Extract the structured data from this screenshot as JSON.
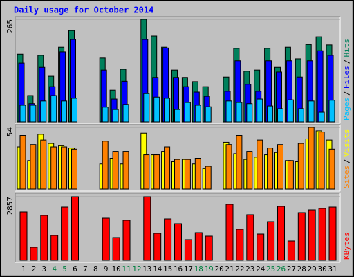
{
  "chart_data": {
    "type": "bar",
    "title": "Daily usage for October 2014",
    "categories": [
      "1",
      "2",
      "3",
      "4",
      "5",
      "6",
      "7",
      "8",
      "9",
      "10",
      "11",
      "12",
      "13",
      "14",
      "15",
      "16",
      "17",
      "18",
      "19",
      "20",
      "21",
      "22",
      "23",
      "24",
      "25",
      "26",
      "27",
      "28",
      "29",
      "30",
      "31"
    ],
    "category_color": "#000000",
    "highlight_indices": [
      3,
      4,
      10,
      11,
      17,
      18,
      24,
      25
    ],
    "highlight_color": "#008040",
    "legend_separator": "/",
    "panels": [
      {
        "ylim": [
          0,
          265
        ],
        "yticks": [
          265
        ],
        "series": [
          {
            "name": "Hits",
            "color": "#00805c",
            "values": [
              175,
              68,
              172,
              118,
              193,
              236,
              0,
              0,
              165,
              82,
              136,
              0,
              265,
              222,
              193,
              134,
              115,
              104,
              91,
              0,
              116,
              190,
              131,
              134,
              190,
              141,
              193,
              163,
              200,
              220,
              199
            ]
          },
          {
            "name": "Files",
            "color": "#0000ff",
            "values": [
              152,
              47,
              141,
              91,
              181,
              213,
              0,
              0,
              134,
              59,
              105,
              0,
              213,
              115,
              191,
              115,
              91,
              77,
              66,
              0,
              79,
              158,
              97,
              79,
              158,
              129,
              158,
              116,
              158,
              184,
              172
            ]
          },
          {
            "name": "Pages",
            "color": "#00c0ff",
            "values": [
              43,
              43,
              54,
              68,
              54,
              61,
              0,
              0,
              38,
              32,
              45,
              0,
              73,
              64,
              61,
              32,
              50,
              43,
              39,
              0,
              54,
              50,
              47,
              59,
              41,
              34,
              57,
              34,
              54,
              25,
              56
            ]
          }
        ]
      },
      {
        "ylim": [
          0,
          54
        ],
        "yticks": [
          54
        ],
        "series": [
          {
            "name": "Visits",
            "color": "#ffff00",
            "values": [
              37,
              25,
              48,
              40,
              38,
              36,
              0,
              0,
              22,
              27,
              22,
              0,
              49,
              30,
              33,
              24,
              26,
              22,
              18,
              0,
              41,
              31,
              26,
              28,
              30,
              32,
              25,
              24,
              44,
              51,
              43
            ]
          },
          {
            "name": "Sites",
            "color": "#ff8000",
            "values": [
              47,
              39,
              43,
              37,
              37,
              35,
              0,
              0,
              42,
              33,
              33,
              0,
              30,
              30,
              37,
              26,
              26,
              27,
              20,
              0,
              39,
              47,
              33,
              43,
              36,
              39,
              25,
              40,
              54,
              50,
              35
            ]
          }
        ]
      },
      {
        "ylim": [
          0,
          2857
        ],
        "yticks": [
          2857
        ],
        "series": [
          {
            "name": "KBytes",
            "color": "#ff0000",
            "values": [
              2174,
              590,
              2019,
              1118,
              2391,
              2857,
              0,
              0,
              1894,
              1025,
              1801,
              0,
              2857,
              1211,
              1863,
              1646,
              932,
              1242,
              1087,
              0,
              2515,
              1397,
              2050,
              1180,
              1739,
              2422,
              870,
              2143,
              2267,
              2329,
              2391
            ]
          }
        ]
      }
    ]
  }
}
